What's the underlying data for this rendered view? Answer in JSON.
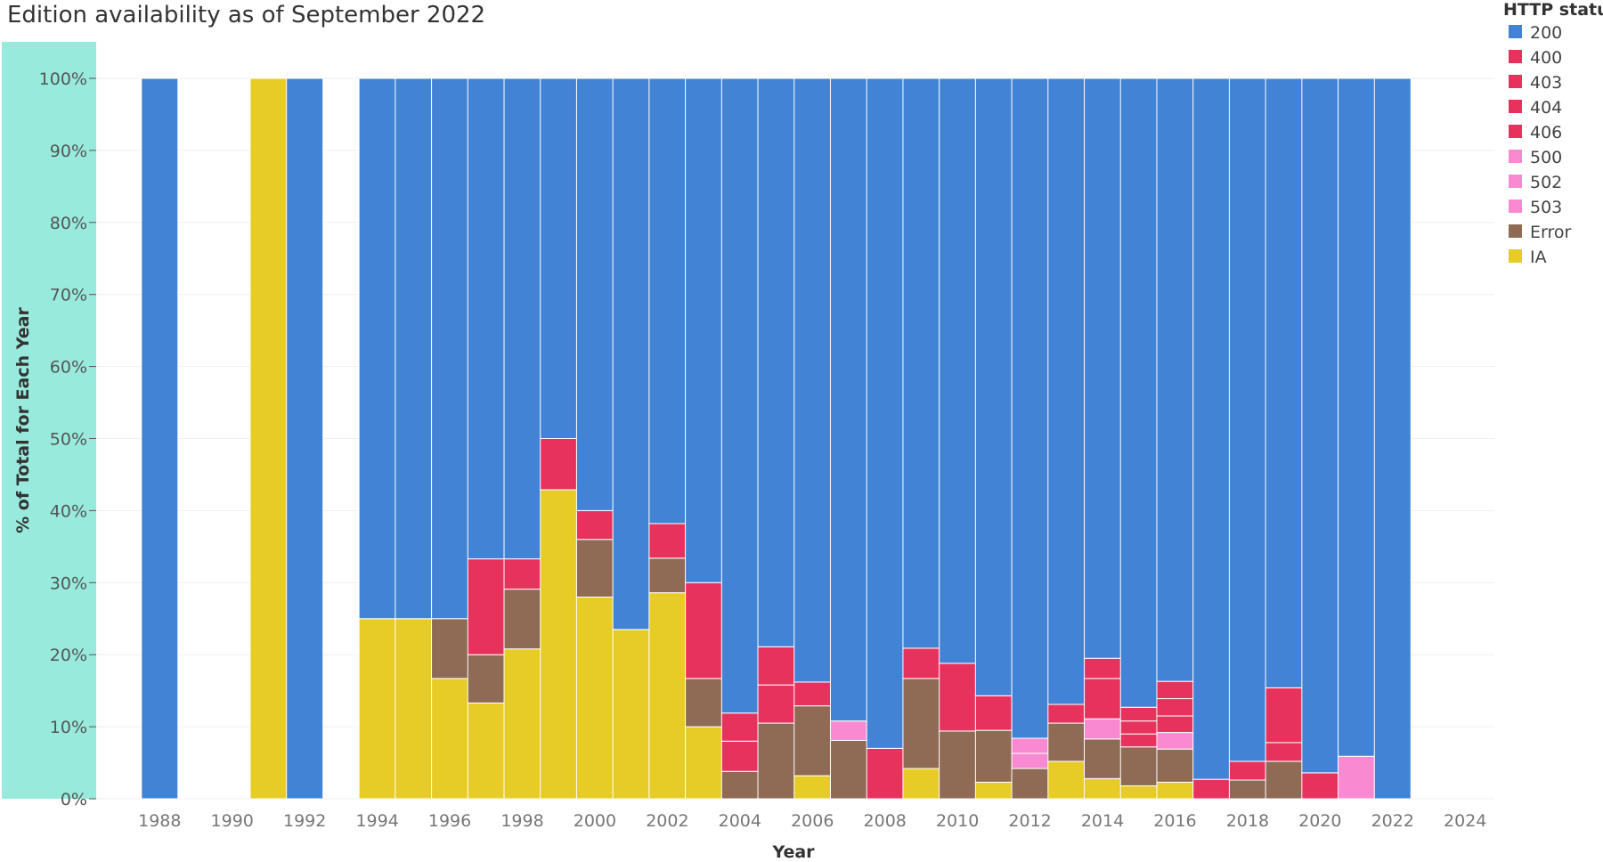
{
  "title": "Edition availability as of September 2022",
  "chart_data": {
    "type": "bar",
    "stacked": true,
    "normalized": true,
    "title": "Edition availability as of September 2022",
    "xlabel": "Year",
    "ylabel": "% of Total for Each Year",
    "ylim": [
      0,
      100
    ],
    "xlim": [
      1987,
      2025
    ],
    "y_ticks": [
      0,
      10,
      20,
      30,
      40,
      50,
      60,
      70,
      80,
      90,
      100
    ],
    "y_tick_labels": [
      "0%",
      "10%",
      "20%",
      "30%",
      "40%",
      "50%",
      "60%",
      "70%",
      "80%",
      "90%",
      "100%"
    ],
    "x_ticks": [
      1988,
      1990,
      1992,
      1994,
      1996,
      1998,
      2000,
      2002,
      2004,
      2006,
      2008,
      2010,
      2012,
      2014,
      2016,
      2018,
      2020,
      2022,
      2024
    ],
    "legend_title": "HTTP status",
    "legend_position": "top-right",
    "stack_order": [
      "IA",
      "Error",
      "503",
      "502",
      "500",
      "406",
      "404",
      "403",
      "400",
      "200"
    ],
    "series_colors": {
      "200": "#4383d6",
      "400": "#e8325e",
      "403": "#e8325e",
      "404": "#e8325e",
      "406": "#e8325e",
      "500": "#f98ad2",
      "502": "#f98ad2",
      "503": "#f98ad2",
      "Error": "#8f6a55",
      "IA": "#e7cc27"
    },
    "legend": [
      "200",
      "400",
      "403",
      "404",
      "406",
      "500",
      "502",
      "503",
      "Error",
      "IA"
    ],
    "years": [
      {
        "year": 1988,
        "segments": [
          {
            "status": "200",
            "value": 100
          }
        ]
      },
      {
        "year": 1991,
        "segments": [
          {
            "status": "IA",
            "value": 100
          }
        ]
      },
      {
        "year": 1992,
        "segments": [
          {
            "status": "200",
            "value": 100
          }
        ]
      },
      {
        "year": 1994,
        "segments": [
          {
            "status": "IA",
            "value": 25
          },
          {
            "status": "200",
            "value": 75
          }
        ]
      },
      {
        "year": 1995,
        "segments": [
          {
            "status": "IA",
            "value": 25
          },
          {
            "status": "200",
            "value": 75
          }
        ]
      },
      {
        "year": 1996,
        "segments": [
          {
            "status": "IA",
            "value": 16.7
          },
          {
            "status": "Error",
            "value": 8.3
          },
          {
            "status": "200",
            "value": 75
          }
        ]
      },
      {
        "year": 1997,
        "segments": [
          {
            "status": "IA",
            "value": 13.3
          },
          {
            "status": "Error",
            "value": 6.7
          },
          {
            "status": "404",
            "value": 13.3
          },
          {
            "status": "200",
            "value": 66.7
          }
        ]
      },
      {
        "year": 1998,
        "segments": [
          {
            "status": "IA",
            "value": 20.8
          },
          {
            "status": "Error",
            "value": 8.3
          },
          {
            "status": "404",
            "value": 4.2
          },
          {
            "status": "200",
            "value": 66.7
          }
        ]
      },
      {
        "year": 1999,
        "segments": [
          {
            "status": "IA",
            "value": 42.9
          },
          {
            "status": "404",
            "value": 7.1
          },
          {
            "status": "200",
            "value": 50
          }
        ]
      },
      {
        "year": 2000,
        "segments": [
          {
            "status": "IA",
            "value": 28
          },
          {
            "status": "Error",
            "value": 8
          },
          {
            "status": "404",
            "value": 4
          },
          {
            "status": "200",
            "value": 60
          }
        ]
      },
      {
        "year": 2001,
        "segments": [
          {
            "status": "IA",
            "value": 23.5
          },
          {
            "status": "200",
            "value": 76.5
          }
        ]
      },
      {
        "year": 2002,
        "segments": [
          {
            "status": "IA",
            "value": 28.6
          },
          {
            "status": "Error",
            "value": 4.8
          },
          {
            "status": "404",
            "value": 4.8
          },
          {
            "status": "200",
            "value": 61.8
          }
        ]
      },
      {
        "year": 2003,
        "segments": [
          {
            "status": "IA",
            "value": 10
          },
          {
            "status": "Error",
            "value": 6.7
          },
          {
            "status": "404",
            "value": 13.3
          },
          {
            "status": "200",
            "value": 70
          }
        ]
      },
      {
        "year": 2004,
        "segments": [
          {
            "status": "Error",
            "value": 3.8
          },
          {
            "status": "403",
            "value": 4.2
          },
          {
            "status": "404",
            "value": 3.9
          },
          {
            "status": "200",
            "value": 88.1
          }
        ]
      },
      {
        "year": 2005,
        "segments": [
          {
            "status": "Error",
            "value": 10.5
          },
          {
            "status": "403",
            "value": 5.3
          },
          {
            "status": "404",
            "value": 5.3
          },
          {
            "status": "200",
            "value": 78.9
          }
        ]
      },
      {
        "year": 2006,
        "segments": [
          {
            "status": "IA",
            "value": 3.2
          },
          {
            "status": "Error",
            "value": 9.7
          },
          {
            "status": "404",
            "value": 3.3
          },
          {
            "status": "200",
            "value": 83.8
          }
        ]
      },
      {
        "year": 2007,
        "segments": [
          {
            "status": "Error",
            "value": 8.1
          },
          {
            "status": "500",
            "value": 2.7
          },
          {
            "status": "200",
            "value": 89.2
          }
        ]
      },
      {
        "year": 2008,
        "segments": [
          {
            "status": "404",
            "value": 7
          },
          {
            "status": "200",
            "value": 93
          }
        ]
      },
      {
        "year": 2009,
        "segments": [
          {
            "status": "IA",
            "value": 4.2
          },
          {
            "status": "Error",
            "value": 12.5
          },
          {
            "status": "404",
            "value": 4.2
          },
          {
            "status": "200",
            "value": 79.1
          }
        ]
      },
      {
        "year": 2010,
        "segments": [
          {
            "status": "Error",
            "value": 9.4
          },
          {
            "status": "404",
            "value": 9.4
          },
          {
            "status": "200",
            "value": 81.2
          }
        ]
      },
      {
        "year": 2011,
        "segments": [
          {
            "status": "IA",
            "value": 2.3
          },
          {
            "status": "Error",
            "value": 7.2
          },
          {
            "status": "404",
            "value": 4.8
          },
          {
            "status": "200",
            "value": 85.7
          }
        ]
      },
      {
        "year": 2012,
        "segments": [
          {
            "status": "Error",
            "value": 4.2
          },
          {
            "status": "500",
            "value": 2.1
          },
          {
            "status": "502",
            "value": 2.1
          },
          {
            "status": "200",
            "value": 91.6
          }
        ]
      },
      {
        "year": 2013,
        "segments": [
          {
            "status": "IA",
            "value": 5.2
          },
          {
            "status": "Error",
            "value": 5.3
          },
          {
            "status": "404",
            "value": 2.6
          },
          {
            "status": "200",
            "value": 86.9
          }
        ]
      },
      {
        "year": 2014,
        "segments": [
          {
            "status": "IA",
            "value": 2.8
          },
          {
            "status": "Error",
            "value": 5.5
          },
          {
            "status": "500",
            "value": 2.8
          },
          {
            "status": "403",
            "value": 5.6
          },
          {
            "status": "404",
            "value": 2.8
          },
          {
            "status": "200",
            "value": 80.5
          }
        ]
      },
      {
        "year": 2015,
        "segments": [
          {
            "status": "IA",
            "value": 1.8
          },
          {
            "status": "Error",
            "value": 5.4
          },
          {
            "status": "400",
            "value": 1.8
          },
          {
            "status": "403",
            "value": 1.8
          },
          {
            "status": "404",
            "value": 1.9
          },
          {
            "status": "200",
            "value": 87.3
          }
        ]
      },
      {
        "year": 2016,
        "segments": [
          {
            "status": "IA",
            "value": 2.3
          },
          {
            "status": "Error",
            "value": 4.6
          },
          {
            "status": "500",
            "value": 2.3
          },
          {
            "status": "400",
            "value": 2.3
          },
          {
            "status": "403",
            "value": 2.4
          },
          {
            "status": "404",
            "value": 2.4
          },
          {
            "status": "200",
            "value": 83.7
          }
        ]
      },
      {
        "year": 2017,
        "segments": [
          {
            "status": "404",
            "value": 2.7
          },
          {
            "status": "200",
            "value": 97.3
          }
        ]
      },
      {
        "year": 2018,
        "segments": [
          {
            "status": "Error",
            "value": 2.6
          },
          {
            "status": "404",
            "value": 2.6
          },
          {
            "status": "200",
            "value": 94.8
          }
        ]
      },
      {
        "year": 2019,
        "segments": [
          {
            "status": "Error",
            "value": 5.2
          },
          {
            "status": "403",
            "value": 2.6
          },
          {
            "status": "404",
            "value": 7.6
          },
          {
            "status": "200",
            "value": 84.6
          }
        ]
      },
      {
        "year": 2020,
        "segments": [
          {
            "status": "404",
            "value": 3.6
          },
          {
            "status": "200",
            "value": 96.4
          }
        ]
      },
      {
        "year": 2021,
        "segments": [
          {
            "status": "500",
            "value": 5.9
          },
          {
            "status": "200",
            "value": 94.1
          }
        ]
      },
      {
        "year": 2022,
        "segments": [
          {
            "status": "200",
            "value": 100
          }
        ]
      }
    ]
  }
}
